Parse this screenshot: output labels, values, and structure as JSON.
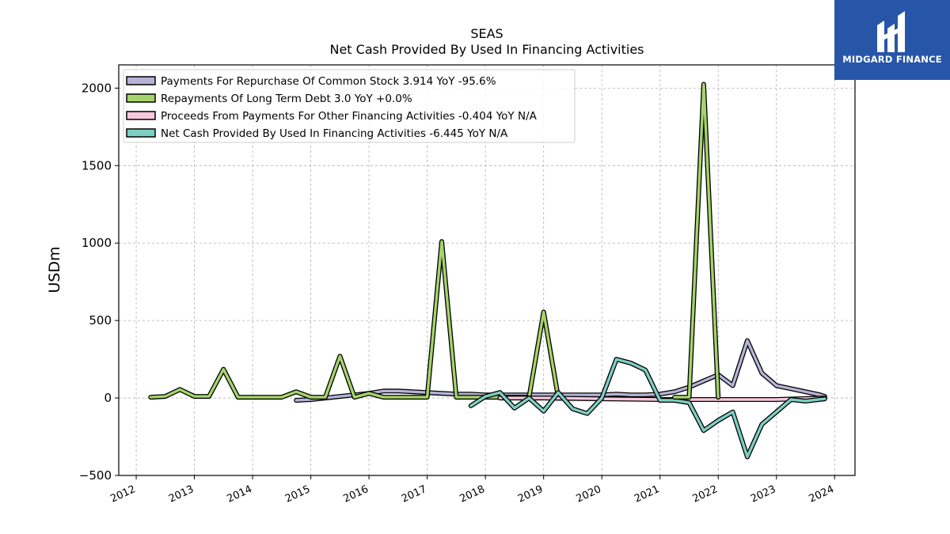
{
  "brand": {
    "name": "MIDGARD FINANCE",
    "bg": "#2756a8"
  },
  "chart_data": {
    "type": "line",
    "title": "SEAS",
    "subtitle": "Net Cash Provided By Used In Financing Activities",
    "ylabel": "USDm",
    "xlabel": "",
    "xlim": [
      2011.7,
      2024.35
    ],
    "ylim": [
      -500,
      2150
    ],
    "yticks": [
      -500,
      0,
      500,
      1000,
      1500,
      2000
    ],
    "xticks": [
      2012,
      2013,
      2014,
      2015,
      2016,
      2017,
      2018,
      2019,
      2020,
      2021,
      2022,
      2023,
      2024
    ],
    "grid": true,
    "legend_position": "top-left",
    "series": [
      {
        "name": "Payments For Repurchase Of Common Stock",
        "legend": "Payments For Repurchase Of Common Stock  3.914 YoY -95.6%",
        "color": "#b5b3d6",
        "points": [
          [
            2014.75,
            -15
          ],
          [
            2015.0,
            -10
          ],
          [
            2015.25,
            0
          ],
          [
            2015.5,
            10
          ],
          [
            2015.75,
            20
          ],
          [
            2016.0,
            30
          ],
          [
            2016.25,
            45
          ],
          [
            2016.5,
            45
          ],
          [
            2016.75,
            40
          ],
          [
            2017.0,
            35
          ],
          [
            2017.25,
            30
          ],
          [
            2017.5,
            25
          ],
          [
            2017.75,
            25
          ],
          [
            2018.0,
            20
          ],
          [
            2018.25,
            20
          ],
          [
            2018.5,
            20
          ],
          [
            2018.75,
            20
          ],
          [
            2019.0,
            20
          ],
          [
            2019.25,
            20
          ],
          [
            2019.5,
            20
          ],
          [
            2019.75,
            20
          ],
          [
            2020.0,
            20
          ],
          [
            2020.25,
            25
          ],
          [
            2020.5,
            20
          ],
          [
            2020.75,
            20
          ],
          [
            2021.0,
            25
          ],
          [
            2021.25,
            40
          ],
          [
            2021.5,
            70
          ],
          [
            2021.75,
            110
          ],
          [
            2022.0,
            150
          ],
          [
            2022.25,
            80
          ],
          [
            2022.5,
            370
          ],
          [
            2022.75,
            160
          ],
          [
            2023.0,
            80
          ],
          [
            2023.25,
            60
          ],
          [
            2023.5,
            40
          ],
          [
            2023.75,
            20
          ],
          [
            2023.83,
            10
          ]
        ]
      },
      {
        "name": "Repayments Of Long Term Debt",
        "legend": "Repayments Of Long Term Debt  3.0 YoY +0.0%",
        "color": "#a5d46a",
        "points": [
          [
            2012.25,
            5
          ],
          [
            2012.5,
            10
          ],
          [
            2012.75,
            55
          ],
          [
            2013.0,
            10
          ],
          [
            2013.25,
            10
          ],
          [
            2013.5,
            185
          ],
          [
            2013.75,
            5
          ],
          [
            2014.0,
            5
          ],
          [
            2014.25,
            5
          ],
          [
            2014.5,
            5
          ],
          [
            2014.75,
            40
          ],
          [
            2015.0,
            5
          ],
          [
            2015.25,
            5
          ],
          [
            2015.5,
            270
          ],
          [
            2015.75,
            5
          ],
          [
            2016.0,
            30
          ],
          [
            2016.25,
            5
          ],
          [
            2016.5,
            5
          ],
          [
            2016.75,
            5
          ],
          [
            2017.0,
            5
          ],
          [
            2017.25,
            1010
          ],
          [
            2017.5,
            5
          ],
          [
            2017.75,
            5
          ],
          [
            2018.0,
            5
          ],
          [
            2018.25,
            5
          ],
          [
            2018.5,
            5
          ],
          [
            2018.75,
            5
          ],
          [
            2019.0,
            555
          ],
          [
            2019.25,
            5
          ]
        ]
      },
      {
        "name": "Proceeds From Payments For Other Financing Activities",
        "legend": "Proceeds From Payments For Other Financing Activities  -0.404 YoY N/A",
        "color": "#f7c8dc",
        "points": [
          [
            2018.25,
            0
          ],
          [
            2019.0,
            0
          ],
          [
            2020.0,
            -5
          ],
          [
            2021.0,
            -10
          ],
          [
            2022.0,
            -10
          ],
          [
            2023.0,
            -10
          ],
          [
            2023.83,
            0
          ]
        ]
      },
      {
        "name": "Net Cash Provided By Used In Financing Activities",
        "legend": "Net Cash Provided By Used In Financing Activities  -6.445 YoY N/A",
        "color": "#7ecfc3",
        "points": [
          [
            2017.75,
            -50
          ],
          [
            2018.0,
            10
          ],
          [
            2018.25,
            35
          ],
          [
            2018.5,
            -65
          ],
          [
            2018.75,
            0
          ],
          [
            2019.0,
            -85
          ],
          [
            2019.25,
            35
          ],
          [
            2019.5,
            -70
          ],
          [
            2019.75,
            -100
          ],
          [
            2020.0,
            0
          ],
          [
            2020.25,
            250
          ],
          [
            2020.5,
            225
          ],
          [
            2020.75,
            180
          ],
          [
            2021.0,
            -15
          ],
          [
            2021.25,
            -15
          ],
          [
            2021.5,
            -30
          ],
          [
            2021.75,
            -210
          ],
          [
            2022.0,
            -145
          ],
          [
            2022.25,
            -90
          ],
          [
            2022.5,
            -380
          ],
          [
            2022.75,
            -170
          ],
          [
            2023.0,
            -90
          ],
          [
            2023.25,
            -10
          ],
          [
            2023.5,
            -20
          ],
          [
            2023.83,
            -5
          ]
        ]
      },
      {
        "name": "Repayments Of Long Term Debt (2021 segment)",
        "legend": "",
        "color": "#a5d46a",
        "points": [
          [
            2021.25,
            5
          ],
          [
            2021.5,
            5
          ],
          [
            2021.75,
            2025
          ],
          [
            2022.0,
            5
          ]
        ]
      }
    ]
  }
}
